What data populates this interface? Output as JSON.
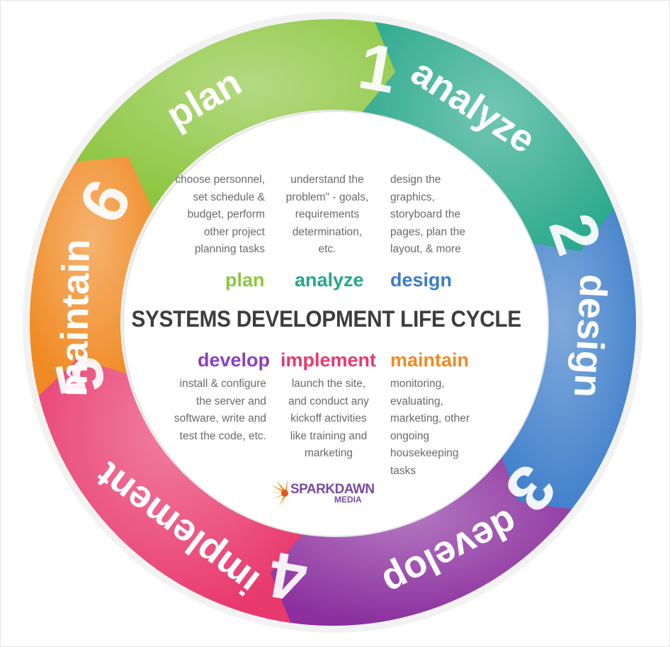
{
  "title": "SYSTEMS DEVELOPMENT LIFE CYCLE",
  "phases": [
    {
      "number": "1",
      "label": "plan",
      "color": "#8cc63f"
    },
    {
      "number": "2",
      "label": "analyze",
      "color": "#26a78a"
    },
    {
      "number": "3",
      "label": "design",
      "color": "#3b7cc9"
    },
    {
      "number": "4",
      "label": "develop",
      "color": "#8b2f9e"
    },
    {
      "number": "5",
      "label": "implement",
      "color": "#e8396d"
    },
    {
      "number": "6",
      "label": "maintain",
      "color": "#f08a24"
    }
  ],
  "top_steps": [
    {
      "heading": "plan",
      "color": "#8cc63f",
      "lines": [
        "choose personnel,",
        "set schedule &",
        "budget, perform",
        "other project",
        "planning tasks"
      ]
    },
    {
      "heading": "analyze",
      "color": "#26a78a",
      "lines": [
        "understand the",
        "problem\" - goals,",
        "requirements",
        "determination,",
        "etc."
      ]
    },
    {
      "heading": "design",
      "color": "#3b7cc9",
      "lines": [
        "design the",
        "graphics,",
        "storyboard the",
        "pages, plan the",
        "layout, & more"
      ]
    }
  ],
  "bottom_steps": [
    {
      "heading": "develop",
      "color": "#8b3fbf",
      "lines": [
        "install & configure",
        "the server and",
        "software, write and",
        "test the code, etc."
      ]
    },
    {
      "heading": "implement",
      "color": "#e8396d",
      "lines": [
        "launch the site,",
        "and conduct any",
        "kickoff activities",
        "like training and",
        "marketing"
      ]
    },
    {
      "heading": "maintain",
      "color": "#f08a24",
      "lines": [
        "monitoring,",
        "evaluating,",
        "marketing, other",
        "ongoing",
        "housekeeping",
        "tasks"
      ]
    }
  ],
  "logo": {
    "line1": "SPARKDAWN",
    "line2": "MEDIA"
  }
}
